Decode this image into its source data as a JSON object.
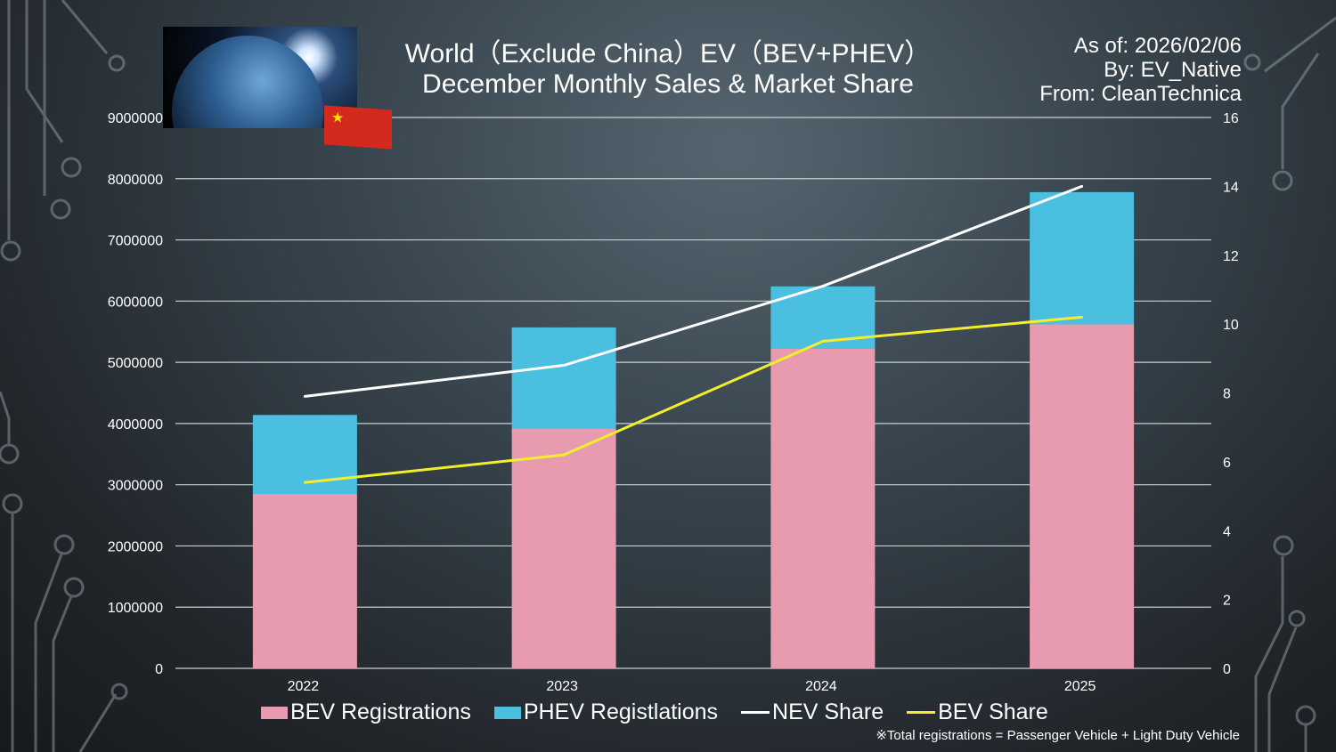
{
  "chart_data": {
    "type": "bar",
    "stacked": true,
    "title": "World（Exclude China）EV（BEV+PHEV）",
    "subtitle": "December Monthly Sales & Market Share",
    "meta": [
      "As of: 2026/02/06",
      "By: EV_Native",
      "From: CleanTechnica"
    ],
    "categories": [
      "2022",
      "2023",
      "2024",
      "2025"
    ],
    "series": [
      {
        "name": "BEV Registrations",
        "type": "bar",
        "axis": "left",
        "color": "#e89aae",
        "values": [
          2850000,
          3920000,
          5230000,
          5620000
        ]
      },
      {
        "name": "PHEV Registlations",
        "type": "bar",
        "axis": "left",
        "color": "#4bbfe0",
        "values": [
          1290000,
          1650000,
          1010000,
          2160000
        ]
      },
      {
        "name": "NEV Share",
        "type": "line",
        "axis": "right",
        "color": "#ffffff",
        "values": [
          7.9,
          8.8,
          11.1,
          14.0
        ]
      },
      {
        "name": "BEV Share",
        "type": "line",
        "axis": "right",
        "color": "#f2ee2e",
        "values": [
          5.4,
          6.2,
          9.5,
          10.2
        ]
      }
    ],
    "ylim_left": [
      0,
      9000000
    ],
    "yticks_left": [
      "0",
      "1000000",
      "2000000",
      "3000000",
      "4000000",
      "5000000",
      "6000000",
      "7000000",
      "8000000",
      "9000000"
    ],
    "ylim_right": [
      0,
      16
    ],
    "yticks_right": [
      "0",
      "2",
      "4",
      "6",
      "8",
      "10",
      "12",
      "14",
      "16"
    ],
    "grid": true,
    "legend_placement": "bottom",
    "footnote": "※Total registrations = Passenger Vehicle + Light Duty Vehicle"
  }
}
